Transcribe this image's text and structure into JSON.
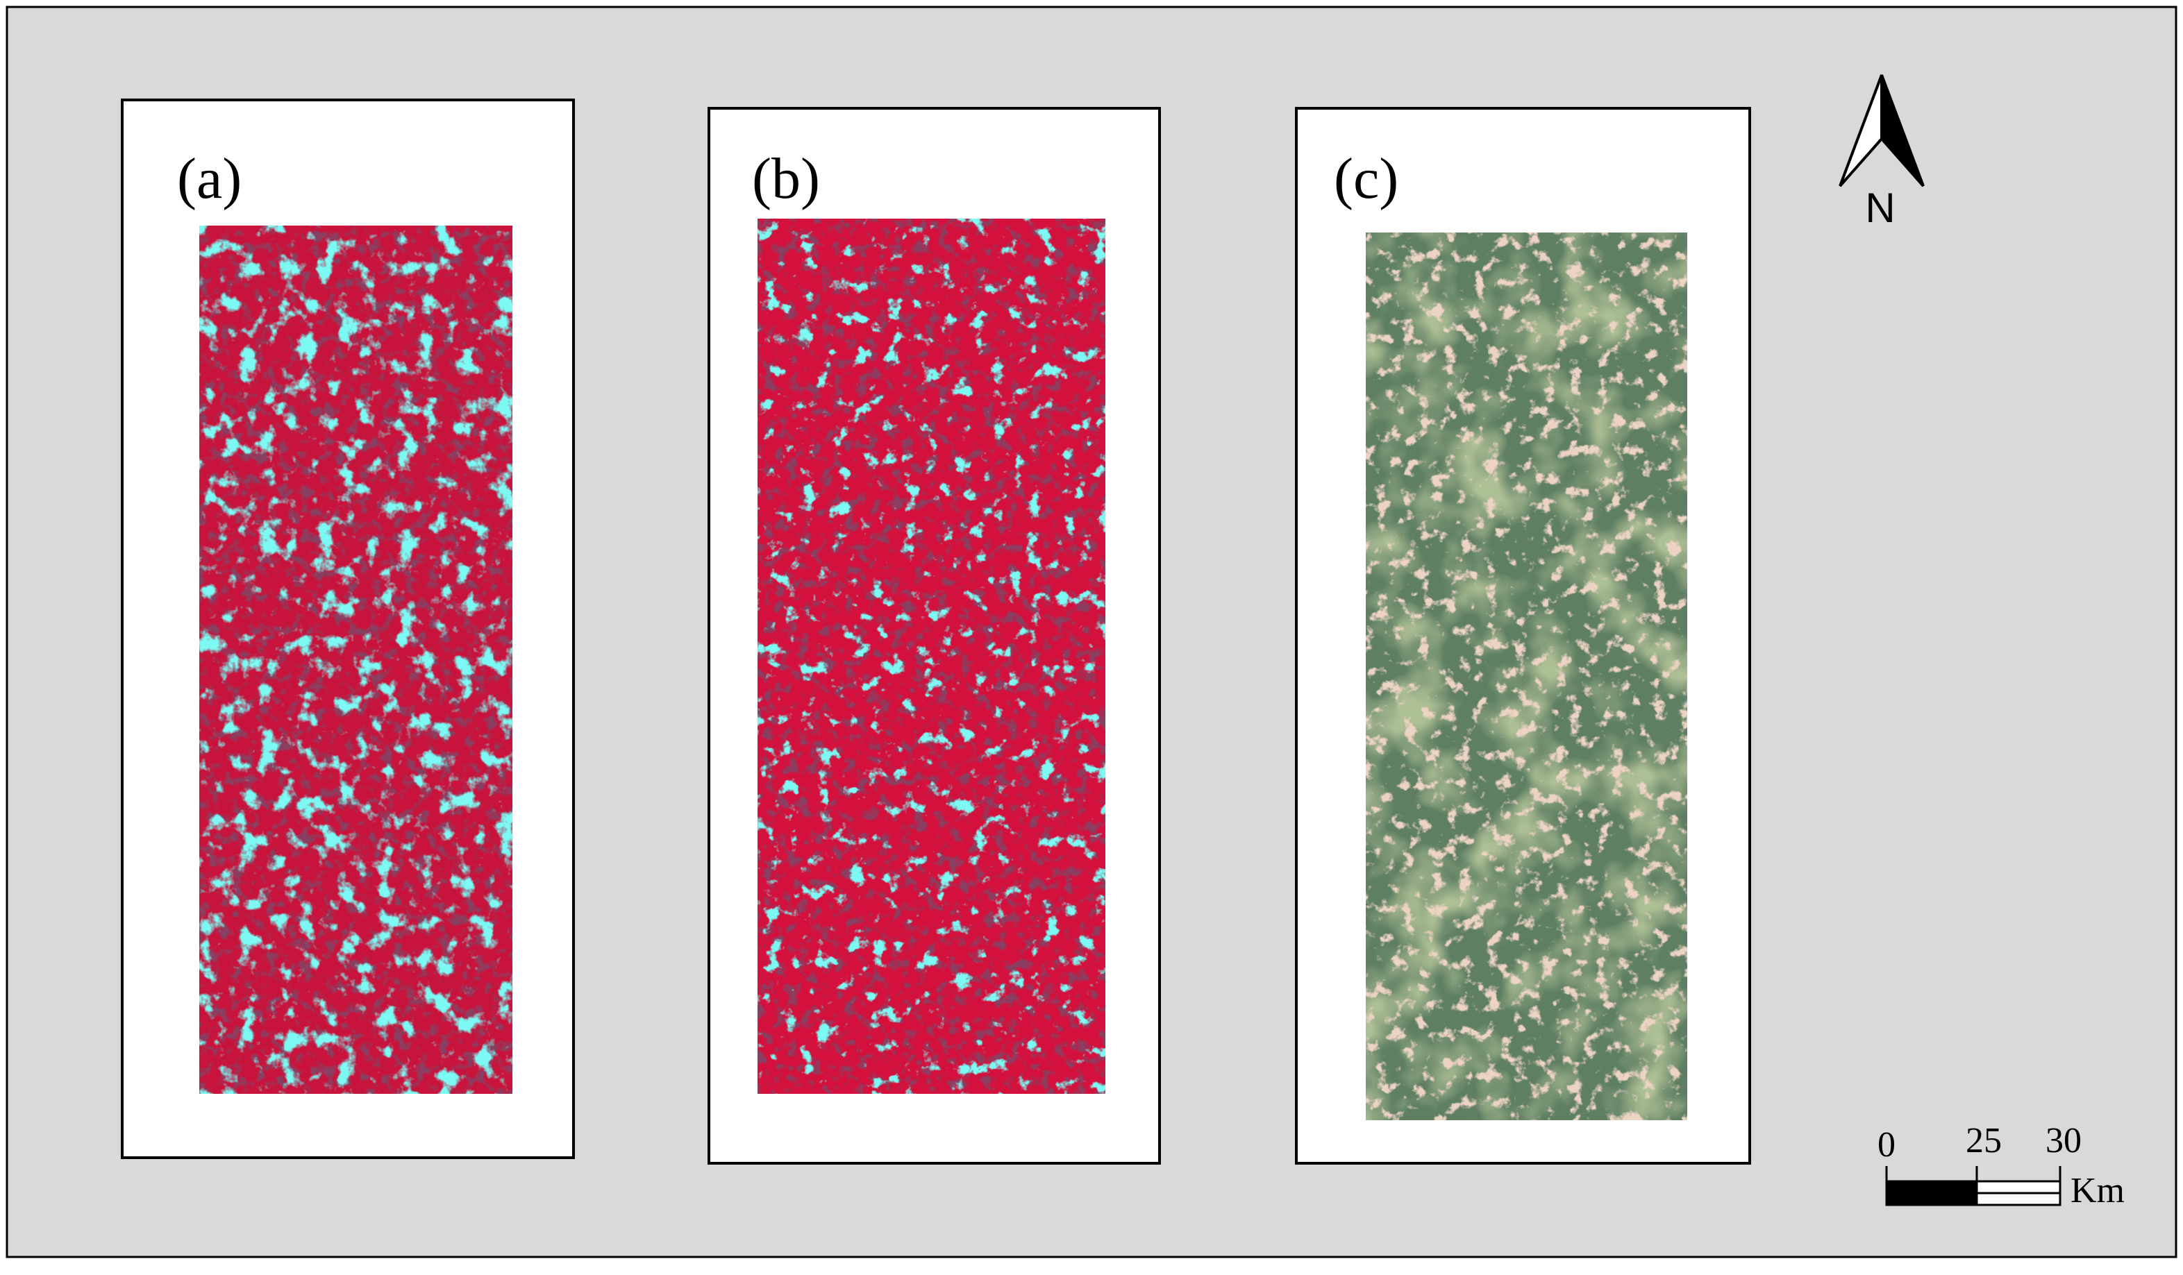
{
  "panels": [
    {
      "label": "(a)"
    },
    {
      "label": "(b)"
    },
    {
      "label": "(c)"
    }
  ],
  "north_arrow": {
    "label": "N"
  },
  "scale_bar": {
    "ticks": [
      "0",
      "25",
      "30"
    ],
    "unit": "Km"
  }
}
